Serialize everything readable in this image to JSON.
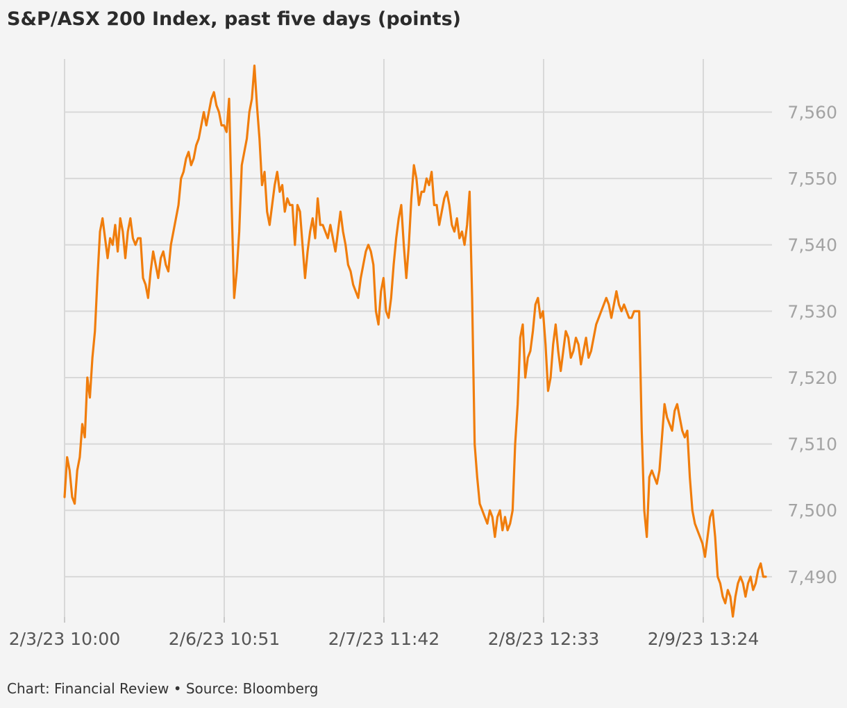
{
  "chart_data": {
    "type": "line",
    "title": "S&P/ASX 200 Index, past five days (points)",
    "xlabel": "",
    "ylabel": "",
    "x_tick_labels": [
      "2/3/23 10:00",
      "2/6/23 10:51",
      "2/7/23 11:42",
      "2/8/23 12:33",
      "2/9/23 13:24"
    ],
    "y_ticks": [
      7490,
      7500,
      7510,
      7520,
      7530,
      7540,
      7550,
      7560
    ],
    "y_tick_labels": [
      "7,490",
      "7,500",
      "7,510",
      "7,520",
      "7,530",
      "7,540",
      "7,550",
      "7,560"
    ],
    "ylim": [
      7483.5,
      7568
    ],
    "grid": true,
    "line_color": "#f07d0c",
    "series": [
      {
        "values": [
          7502,
          7508,
          7506,
          7502,
          7501,
          7506,
          7508,
          7513,
          7511,
          7520,
          7517,
          7523,
          7527,
          7535,
          7542,
          7544,
          7541,
          7538,
          7541,
          7540,
          7543,
          7539,
          7544,
          7542,
          7538,
          7542,
          7544,
          7541,
          7540,
          7541,
          7541,
          7535,
          7534,
          7532,
          7536,
          7539,
          7537,
          7535,
          7538,
          7539,
          7537,
          7536,
          7540,
          7542,
          7544,
          7546,
          7550,
          7551,
          7553,
          7554,
          7552,
          7553,
          7555,
          7556,
          7558,
          7560,
          7558,
          7560,
          7562,
          7563,
          7561,
          7560,
          7558,
          7558,
          7557,
          7562,
          7546,
          7532,
          7536,
          7542,
          7552,
          7554,
          7556,
          7560,
          7562,
          7567,
          7561,
          7556,
          7549,
          7551,
          7545,
          7543,
          7546,
          7549,
          7551,
          7548,
          7549,
          7545,
          7547,
          7546,
          7546,
          7540,
          7546,
          7545,
          7540,
          7535,
          7539,
          7542,
          7544,
          7541,
          7547,
          7543,
          7543,
          7542,
          7541,
          7543,
          7541,
          7539,
          7542,
          7545,
          7542,
          7540,
          7537,
          7536,
          7534,
          7533,
          7532,
          7535,
          7537,
          7539,
          7540,
          7539,
          7537,
          7530,
          7528,
          7533,
          7535,
          7530,
          7529,
          7532,
          7537,
          7541,
          7544,
          7546,
          7540,
          7535,
          7540,
          7547,
          7552,
          7550,
          7546,
          7548,
          7548,
          7550,
          7549,
          7551,
          7546,
          7546,
          7543,
          7545,
          7547,
          7548,
          7546,
          7543,
          7542,
          7544,
          7541,
          7542,
          7540,
          7543,
          7548,
          7532,
          7510,
          7505,
          7501,
          7500,
          7499,
          7498,
          7500,
          7499,
          7496,
          7499,
          7500,
          7497,
          7499,
          7497,
          7498,
          7500,
          7510,
          7516,
          7526,
          7528,
          7520,
          7523,
          7524,
          7527,
          7531,
          7532,
          7529,
          7530,
          7525,
          7518,
          7520,
          7525,
          7528,
          7524,
          7521,
          7524,
          7527,
          7526,
          7523,
          7524,
          7526,
          7525,
          7522,
          7524,
          7526,
          7523,
          7524,
          7526,
          7528,
          7529,
          7530,
          7531,
          7532,
          7531,
          7529,
          7531,
          7533,
          7531,
          7530,
          7531,
          7530,
          7529,
          7529,
          7530,
          7530,
          7530,
          7512,
          7500,
          7496,
          7505,
          7506,
          7505,
          7504,
          7506,
          7511,
          7516,
          7514,
          7513,
          7512,
          7515,
          7516,
          7514,
          7512,
          7511,
          7512,
          7505,
          7500,
          7498,
          7497,
          7496,
          7495,
          7493,
          7496,
          7499,
          7500,
          7496,
          7490,
          7489,
          7487,
          7486,
          7488,
          7487,
          7484,
          7487,
          7489,
          7490,
          7489,
          7487,
          7489,
          7490,
          7488,
          7489,
          7491,
          7492,
          7490,
          7490
        ]
      }
    ]
  },
  "footer": {
    "text": "Chart: Financial Review • Source: Bloomberg"
  }
}
